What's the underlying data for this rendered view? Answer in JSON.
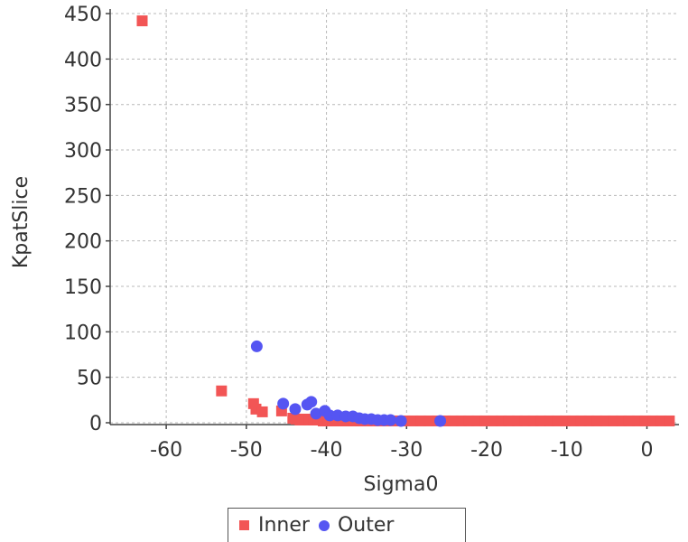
{
  "chart_data": {
    "type": "scatter",
    "xlabel": "Sigma0",
    "ylabel": "KpatSlice",
    "xlim": [
      -67,
      4
    ],
    "ylim": [
      -2,
      455
    ],
    "x_ticks": [
      -60,
      -50,
      -40,
      -30,
      -20,
      -10,
      0
    ],
    "y_ticks": [
      0,
      50,
      100,
      150,
      200,
      250,
      300,
      350,
      400,
      450
    ],
    "grid": true,
    "legend_position": "bottom",
    "series": [
      {
        "name": "Inner",
        "marker": "square",
        "color": "#f25555",
        "points": [
          [
            -63,
            442
          ],
          [
            -53.1,
            35
          ],
          [
            -49.1,
            21
          ],
          [
            -48.8,
            15
          ],
          [
            -48,
            12
          ],
          [
            -45.6,
            13
          ],
          [
            -44.2,
            5
          ],
          [
            -43.8,
            4
          ],
          [
            -43.3,
            3
          ],
          [
            -42.7,
            4
          ],
          [
            -42.2,
            3
          ],
          [
            -41.6,
            3
          ],
          [
            -41,
            3
          ],
          [
            -40.4,
            2
          ],
          [
            -39.8,
            2
          ],
          [
            -39.2,
            2
          ],
          [
            -38.6,
            2
          ],
          [
            -38,
            2
          ],
          [
            -37.3,
            2
          ],
          [
            -36.6,
            2
          ],
          [
            -35.8,
            2
          ],
          [
            -35,
            2
          ],
          [
            -34.2,
            2
          ],
          [
            -33.4,
            2
          ],
          [
            -32.6,
            2
          ],
          [
            -31.8,
            2
          ],
          [
            -31,
            2
          ],
          [
            -30.2,
            2
          ],
          [
            -29.2,
            2
          ],
          [
            -28.2,
            2
          ],
          [
            -27.2,
            2
          ],
          [
            -26.2,
            2
          ],
          [
            -25.2,
            2
          ],
          [
            -24.2,
            2
          ],
          [
            -23.2,
            2
          ],
          [
            -22.2,
            2
          ],
          [
            -21.2,
            2
          ],
          [
            -20.2,
            2
          ],
          [
            -19.2,
            2
          ],
          [
            -18.2,
            2
          ],
          [
            -17.2,
            2
          ],
          [
            -16.2,
            2
          ],
          [
            -15.2,
            2
          ],
          [
            -14.2,
            2
          ],
          [
            -13.2,
            2
          ],
          [
            -12.2,
            2
          ],
          [
            -11.2,
            2
          ],
          [
            -10.2,
            2
          ],
          [
            -9.2,
            2
          ],
          [
            -8.2,
            2
          ],
          [
            -7.2,
            2
          ],
          [
            -6.2,
            2
          ],
          [
            -5.2,
            2
          ],
          [
            -4.2,
            2
          ],
          [
            -3.2,
            2
          ],
          [
            -2.2,
            2
          ],
          [
            -1.2,
            2
          ],
          [
            -0.2,
            2
          ],
          [
            0.8,
            2
          ],
          [
            1.8,
            2
          ],
          [
            2.8,
            2
          ]
        ]
      },
      {
        "name": "Outer",
        "marker": "circle",
        "color": "#5555f2",
        "points": [
          [
            -48.7,
            84
          ],
          [
            -45.4,
            21
          ],
          [
            -43.9,
            15
          ],
          [
            -42.4,
            20
          ],
          [
            -41.9,
            23
          ],
          [
            -41.3,
            10
          ],
          [
            -40.2,
            13
          ],
          [
            -39.6,
            8
          ],
          [
            -38.6,
            8
          ],
          [
            -37.6,
            7
          ],
          [
            -36.7,
            7
          ],
          [
            -35.9,
            5
          ],
          [
            -35.2,
            4
          ],
          [
            -34.4,
            4
          ],
          [
            -33.6,
            3
          ],
          [
            -32.8,
            3
          ],
          [
            -32,
            3
          ],
          [
            -30.7,
            2
          ],
          [
            -25.8,
            2
          ]
        ]
      }
    ]
  }
}
